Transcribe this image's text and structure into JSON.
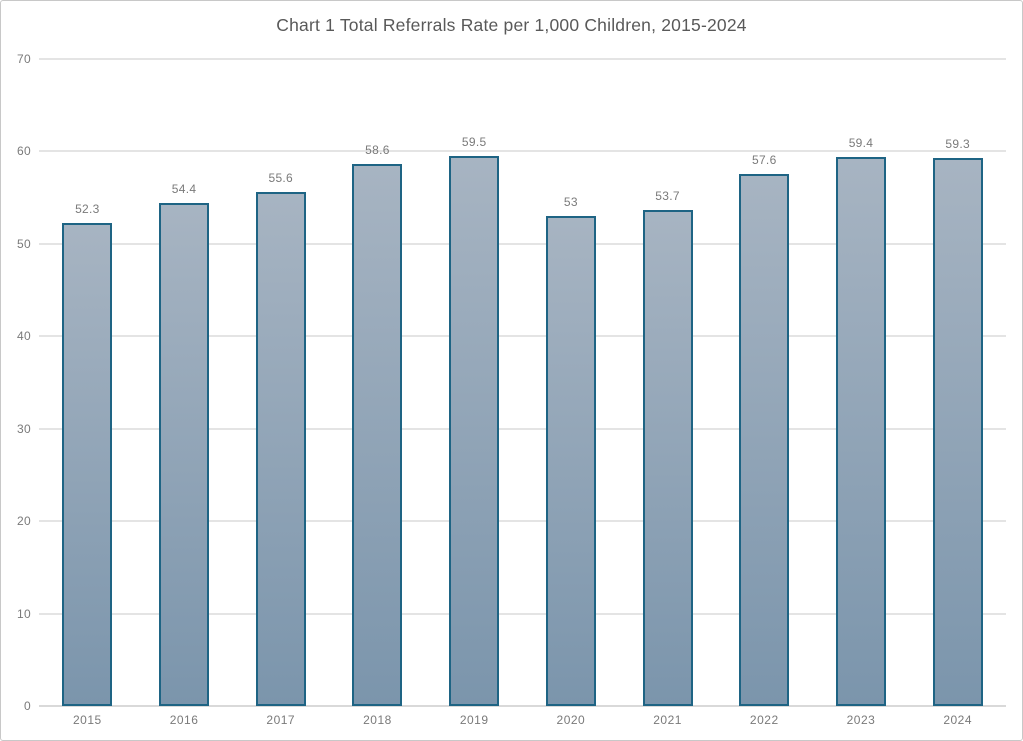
{
  "title": "Chart 1 Total Referrals Rate per 1,000 Children, 2015-2024",
  "colors": {
    "bar_fill_top": "#a7b4c2",
    "bar_fill_bottom": "#7b95ac",
    "bar_border": "#1e6484",
    "gridline": "#e4e4e4",
    "baseline": "#d9d9d9",
    "title_text": "#595959",
    "axis_text": "#7a7a7a",
    "frame_border": "#c8c8c8",
    "background": "#ffffff"
  },
  "chart_data": {
    "type": "bar",
    "title": "Chart 1 Total Referrals Rate per 1,000 Children, 2015-2024",
    "categories": [
      "2015",
      "2016",
      "2017",
      "2018",
      "2019",
      "2020",
      "2021",
      "2022",
      "2023",
      "2024"
    ],
    "values": [
      52.3,
      54.4,
      55.6,
      58.6,
      59.5,
      53,
      53.7,
      57.6,
      59.4,
      59.3
    ],
    "value_labels": [
      "52.3",
      "54.4",
      "55.6",
      "58.6",
      "59.5",
      "53",
      "53.7",
      "57.6",
      "59.4",
      "59.3"
    ],
    "xlabel": "",
    "ylabel": "",
    "ylim": [
      0,
      70
    ],
    "yticks": [
      0,
      10,
      20,
      30,
      40,
      50,
      60,
      70
    ],
    "grid": true,
    "legend": false,
    "data_labels_position": "above-bar"
  }
}
